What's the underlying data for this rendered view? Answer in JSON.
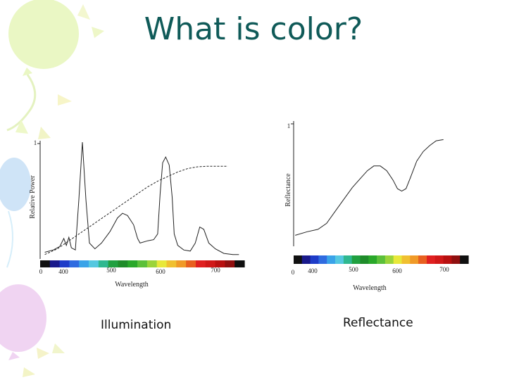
{
  "slide": {
    "title": "What is color?"
  },
  "captions": {
    "left": "Illumination",
    "right": "Reflectance"
  },
  "colors": {
    "title": "#0f5a58"
  },
  "chart_data": [
    {
      "type": "line",
      "xlabel": "Wavelength",
      "ylabel": "Relative Power",
      "xticks": [
        "0",
        "400",
        "500",
        "600",
        "700"
      ],
      "yticks": [
        "1"
      ],
      "xlim": [
        350,
        750
      ],
      "ylim": [
        0,
        1
      ],
      "series": [
        {
          "style": "solid",
          "points": [
            [
              355,
              0.04
            ],
            [
              372,
              0.06
            ],
            [
              385,
              0.09
            ],
            [
              393,
              0.16
            ],
            [
              398,
              0.1
            ],
            [
              403,
              0.17
            ],
            [
              408,
              0.08
            ],
            [
              416,
              0.06
            ],
            [
              423,
              0.5
            ],
            [
              430,
              1.0
            ],
            [
              437,
              0.5
            ],
            [
              444,
              0.12
            ],
            [
              455,
              0.07
            ],
            [
              468,
              0.12
            ],
            [
              485,
              0.22
            ],
            [
              500,
              0.34
            ],
            [
              510,
              0.38
            ],
            [
              520,
              0.36
            ],
            [
              532,
              0.28
            ],
            [
              540,
              0.16
            ],
            [
              545,
              0.12
            ],
            [
              560,
              0.14
            ],
            [
              572,
              0.15
            ],
            [
              580,
              0.2
            ],
            [
              585,
              0.55
            ],
            [
              590,
              0.82
            ],
            [
              596,
              0.87
            ],
            [
              603,
              0.8
            ],
            [
              609,
              0.52
            ],
            [
              613,
              0.2
            ],
            [
              620,
              0.1
            ],
            [
              632,
              0.06
            ],
            [
              645,
              0.05
            ],
            [
              655,
              0.12
            ],
            [
              664,
              0.26
            ],
            [
              672,
              0.24
            ],
            [
              682,
              0.12
            ],
            [
              695,
              0.07
            ],
            [
              712,
              0.03
            ],
            [
              730,
              0.02
            ],
            [
              742,
              0.02
            ]
          ]
        },
        {
          "style": "dashed",
          "points": [
            [
              355,
              0.02
            ],
            [
              380,
              0.07
            ],
            [
              400,
              0.13
            ],
            [
              420,
              0.19
            ],
            [
              440,
              0.25
            ],
            [
              460,
              0.31
            ],
            [
              480,
              0.37
            ],
            [
              500,
              0.43
            ],
            [
              520,
              0.49
            ],
            [
              540,
              0.55
            ],
            [
              560,
              0.61
            ],
            [
              580,
              0.66
            ],
            [
              600,
              0.7
            ],
            [
              620,
              0.74
            ],
            [
              640,
              0.77
            ],
            [
              660,
              0.785
            ],
            [
              680,
              0.79
            ],
            [
              700,
              0.79
            ],
            [
              720,
              0.79
            ]
          ]
        }
      ]
    },
    {
      "type": "line",
      "xlabel": "Wavelength",
      "ylabel": "Reflectance",
      "xticks": [
        "0",
        "400",
        "500",
        "600",
        "700"
      ],
      "yticks": [
        "1"
      ],
      "xlim": [
        350,
        750
      ],
      "ylim": [
        0,
        1
      ],
      "series": [
        {
          "style": "solid",
          "points": [
            [
              352,
              0.08
            ],
            [
              380,
              0.11
            ],
            [
              405,
              0.13
            ],
            [
              425,
              0.18
            ],
            [
              445,
              0.28
            ],
            [
              465,
              0.38
            ],
            [
              485,
              0.48
            ],
            [
              505,
              0.56
            ],
            [
              520,
              0.62
            ],
            [
              535,
              0.66
            ],
            [
              550,
              0.66
            ],
            [
              565,
              0.62
            ],
            [
              580,
              0.54
            ],
            [
              590,
              0.47
            ],
            [
              600,
              0.45
            ],
            [
              610,
              0.47
            ],
            [
              620,
              0.56
            ],
            [
              635,
              0.7
            ],
            [
              650,
              0.78
            ],
            [
              665,
              0.83
            ],
            [
              680,
              0.87
            ],
            [
              697,
              0.88
            ]
          ]
        }
      ]
    }
  ]
}
